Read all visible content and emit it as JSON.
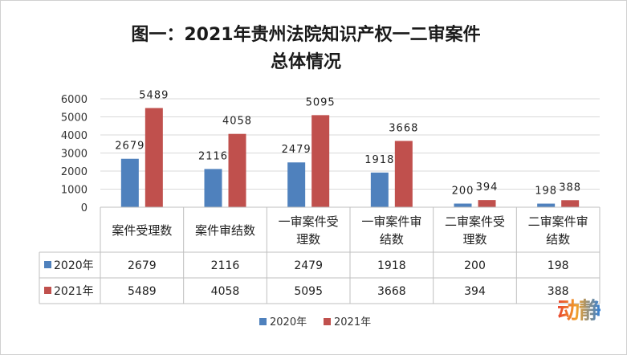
{
  "title_line1": "图一：2021年贵州法院知识产权一二审案件",
  "title_line2": "总体情况",
  "watermark": "动静",
  "colors": {
    "2020": "#4f81bd",
    "2021": "#c0504d",
    "grid": "#d9d9d9",
    "table_border": "#bfbfbf"
  },
  "chart_data": {
    "type": "bar",
    "title": "图一：2021年贵州法院知识产权一二审案件总体情况",
    "categories": [
      "案件受理数",
      "案件审结数",
      "一审案件受理数",
      "一审案件审结数",
      "二审案件受理数",
      "二审案件审结数"
    ],
    "category_lines": [
      [
        "案件受理数"
      ],
      [
        "案件审结数"
      ],
      [
        "一审案件受",
        "理数"
      ],
      [
        "一审案件审",
        "结数"
      ],
      [
        "二审案件受",
        "理数"
      ],
      [
        "二审案件审",
        "结数"
      ]
    ],
    "series": [
      {
        "name": "2020年",
        "color": "#4f81bd",
        "values": [
          2679,
          2116,
          2479,
          1918,
          200,
          198
        ]
      },
      {
        "name": "2021年",
        "color": "#c0504d",
        "values": [
          5489,
          4058,
          5095,
          3668,
          394,
          388
        ]
      }
    ],
    "ylim": [
      0,
      6000
    ],
    "yticks": [
      0,
      1000,
      2000,
      3000,
      4000,
      5000,
      6000
    ],
    "grid": true,
    "legend_position": "bottom",
    "data_table": true
  }
}
